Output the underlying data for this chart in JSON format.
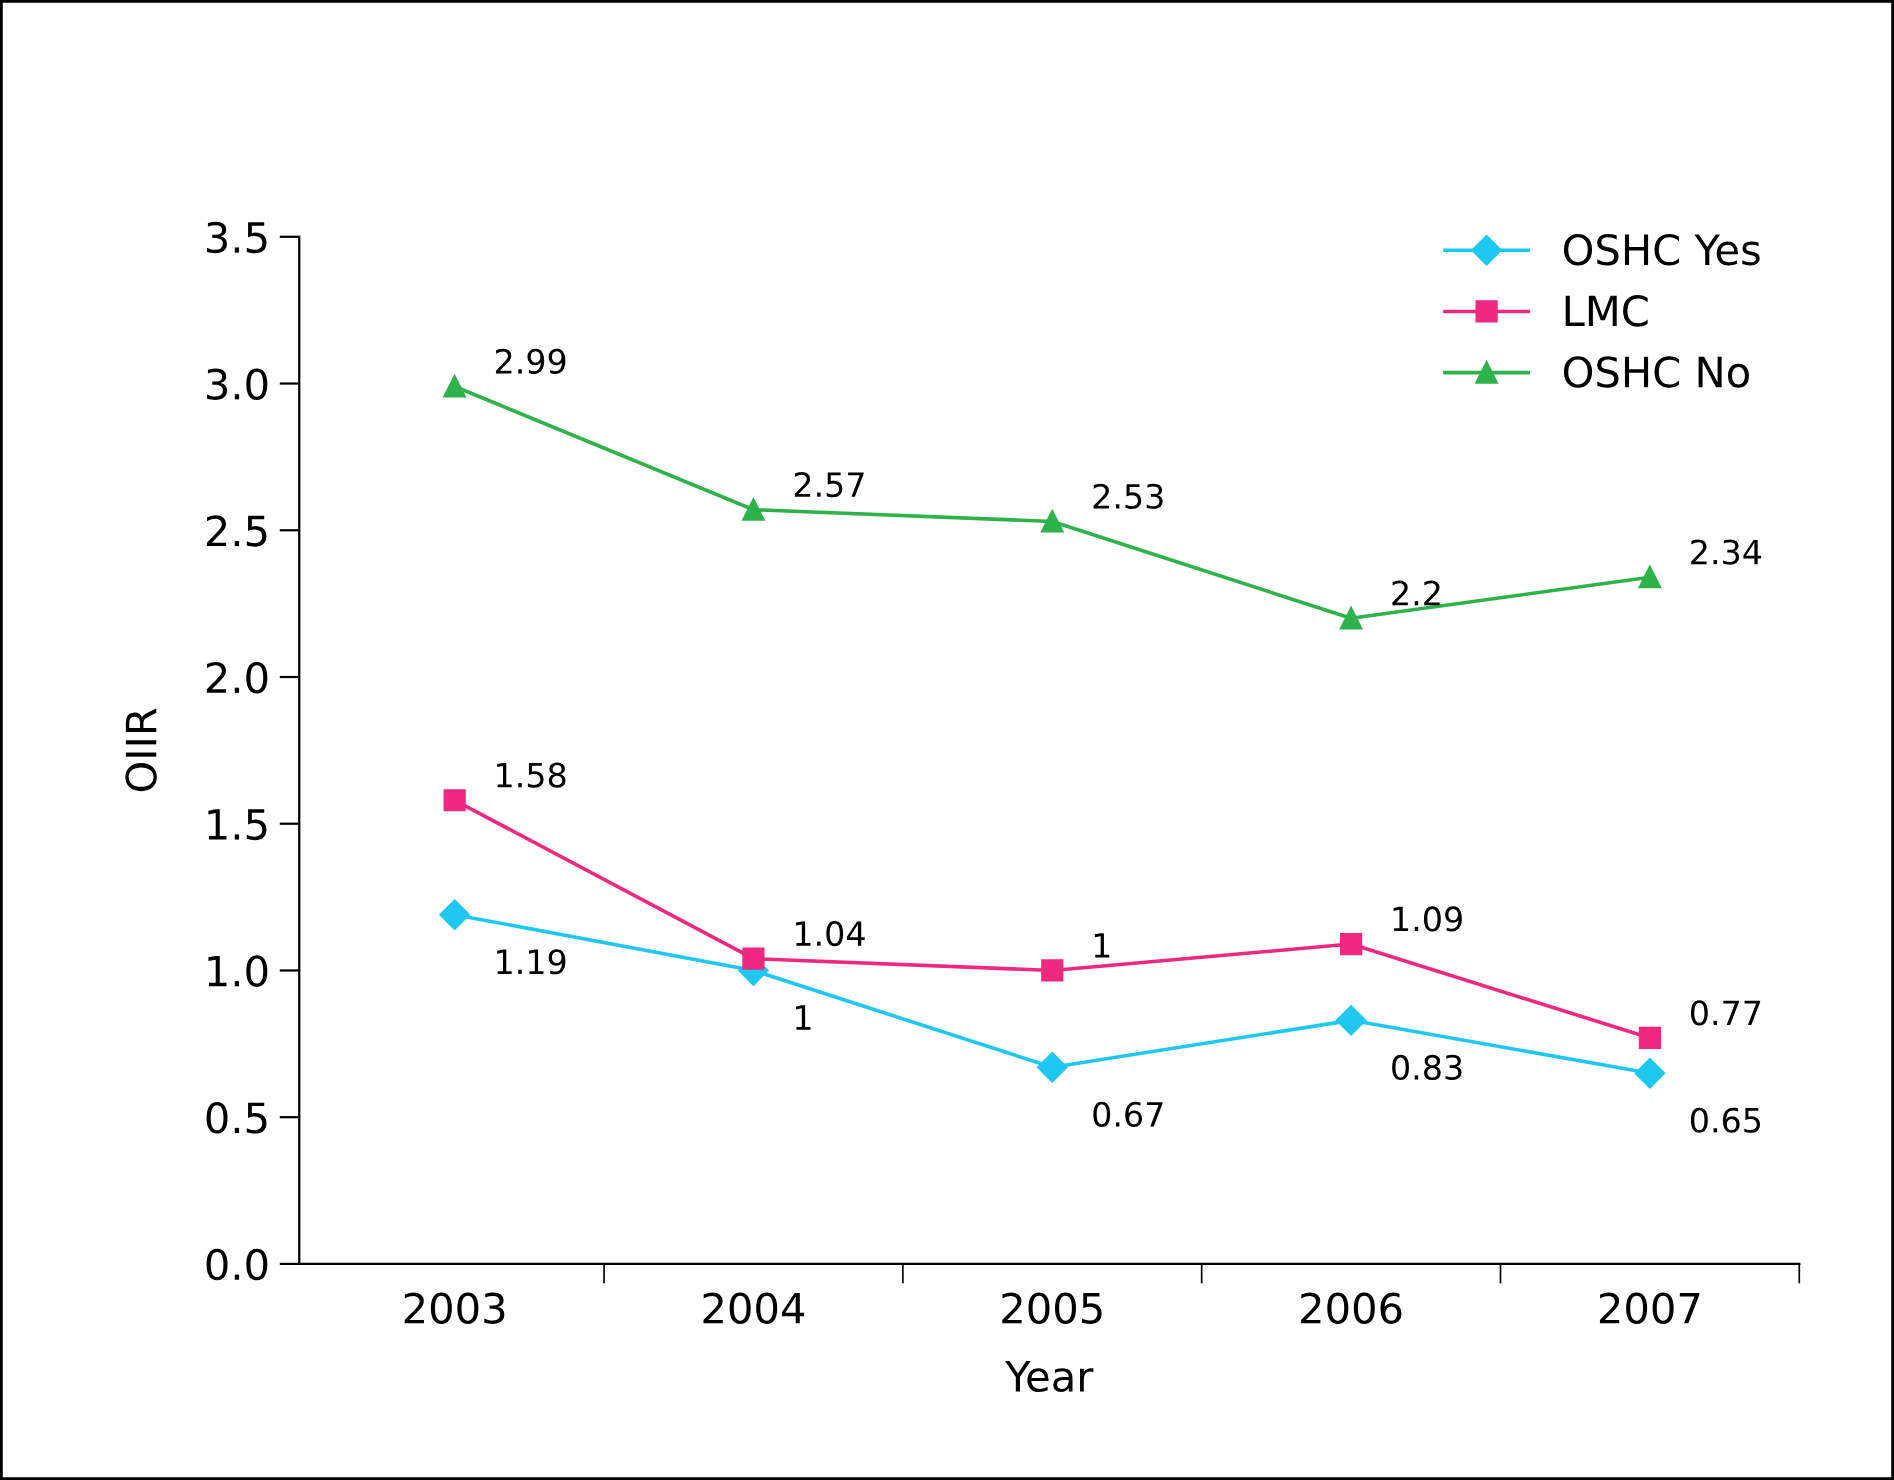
{
  "chart_data": {
    "type": "line",
    "xlabel": "Year",
    "ylabel": "OIIR",
    "categories": [
      "2003",
      "2004",
      "2005",
      "2006",
      "2007"
    ],
    "series": [
      {
        "name": "OSHC Yes",
        "color": "#1ec8f0",
        "marker": "diamond",
        "values": [
          1.19,
          1,
          0.67,
          0.83,
          0.65
        ]
      },
      {
        "name": "LMC",
        "color": "#f0287f",
        "marker": "square",
        "values": [
          1.58,
          1.04,
          1,
          1.09,
          0.77
        ]
      },
      {
        "name": "OSHC No",
        "color": "#2db34a",
        "marker": "triangle",
        "values": [
          2.99,
          2.57,
          2.53,
          2.2,
          2.34
        ]
      }
    ],
    "ylim": [
      0,
      3.5
    ],
    "yticks": [
      {
        "value": 0,
        "label": "0.0"
      },
      {
        "value": 0.5,
        "label": "0.5"
      },
      {
        "value": 1,
        "label": "1.0"
      },
      {
        "value": 1.5,
        "label": "1.5"
      },
      {
        "value": 2,
        "label": "2.0"
      },
      {
        "value": 2.5,
        "label": "2.5"
      },
      {
        "value": 3,
        "label": "3.0"
      },
      {
        "value": 3.5,
        "label": "3.5"
      }
    ],
    "data_labels": true,
    "legend": "top right",
    "grid": false,
    "line_style": "solid"
  }
}
